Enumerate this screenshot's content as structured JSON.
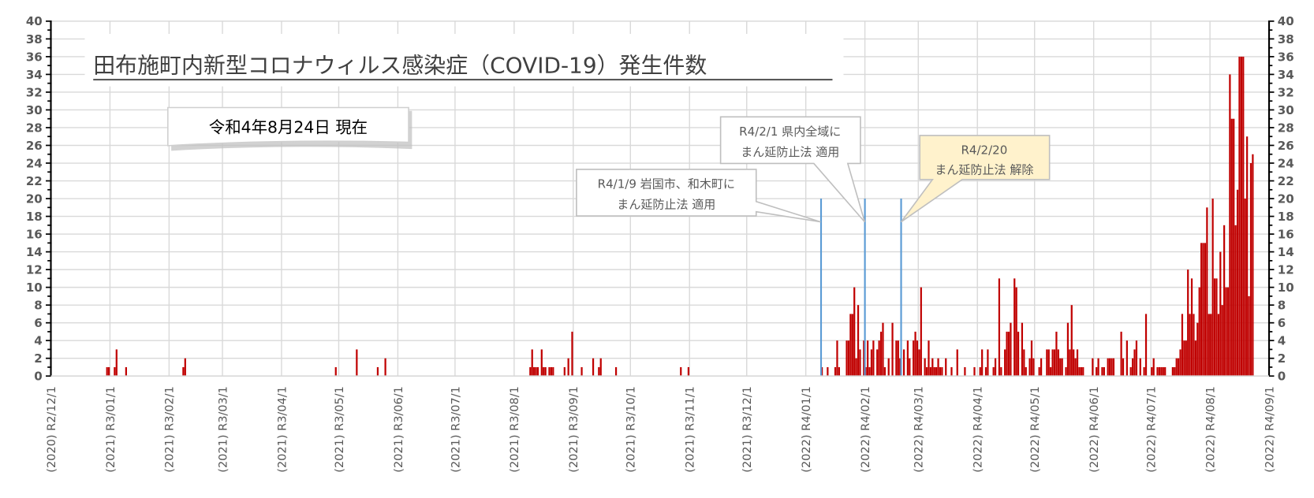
{
  "chart_data": {
    "type": "bar",
    "title": "田布施町内新型コロナウィルス感染症（COVID-19）発生件数",
    "as_of_label": "令和4年8月24日 現在",
    "xlabel": "",
    "ylabel": "",
    "ylim": [
      0,
      40
    ],
    "y_ticks": [
      "0",
      "2",
      "4",
      "6",
      "8",
      "10",
      "12",
      "14",
      "16",
      "18",
      "20",
      "22",
      "24",
      "26",
      "28",
      "30",
      "32",
      "34",
      "36",
      "38",
      "40"
    ],
    "x_range": [
      "2020-12-01",
      "2022-09-01"
    ],
    "grid": true,
    "x_ticks": [
      {
        "date": "2020-12-01",
        "label": "(2020) R2/12/1"
      },
      {
        "date": "2021-01-01",
        "label": "(2021) R3/01/1"
      },
      {
        "date": "2021-02-01",
        "label": "(2021) R3/02/1"
      },
      {
        "date": "2021-03-01",
        "label": "(2021) R3/03/1"
      },
      {
        "date": "2021-04-01",
        "label": "(2021) R3/04/1"
      },
      {
        "date": "2021-05-01",
        "label": "(2021) R3/05/1"
      },
      {
        "date": "2021-06-01",
        "label": "(2021) R3/06/1"
      },
      {
        "date": "2021-07-01",
        "label": "(2021) R3/07/1"
      },
      {
        "date": "2021-08-01",
        "label": "(2021) R3/08/1"
      },
      {
        "date": "2021-09-01",
        "label": "(2021) R3/09/1"
      },
      {
        "date": "2021-10-01",
        "label": "(2021) R3/10/1"
      },
      {
        "date": "2021-11-01",
        "label": "(2021) R3/11/1"
      },
      {
        "date": "2021-12-01",
        "label": "(2021) R3/12/1"
      },
      {
        "date": "2022-01-01",
        "label": "(2022) R4/01/1"
      },
      {
        "date": "2022-02-01",
        "label": "(2022) R4/02/1"
      },
      {
        "date": "2022-03-01",
        "label": "(2022) R4/03/1"
      },
      {
        "date": "2022-04-01",
        "label": "(2022) R4/04/1"
      },
      {
        "date": "2022-05-01",
        "label": "(2022) R4/05/1"
      },
      {
        "date": "2022-06-01",
        "label": "(2022) R4/06/1"
      },
      {
        "date": "2022-07-01",
        "label": "(2022) R4/07/1"
      },
      {
        "date": "2022-08-01",
        "label": "(2022) R4/08/1"
      },
      {
        "date": "2022-09-01",
        "label": "(2022) R4/09/1"
      }
    ],
    "series": [
      {
        "name": "発生件数",
        "color": "#c00000",
        "points": [
          [
            "2020-12-30",
            1
          ],
          [
            "2020-12-31",
            1
          ],
          [
            "2021-01-03",
            1
          ],
          [
            "2021-01-04",
            3
          ],
          [
            "2021-01-09",
            1
          ],
          [
            "2021-02-08",
            1
          ],
          [
            "2021-02-09",
            2
          ],
          [
            "2021-04-29",
            1
          ],
          [
            "2021-05-10",
            3
          ],
          [
            "2021-05-21",
            1
          ],
          [
            "2021-05-25",
            2
          ],
          [
            "2021-08-09",
            1
          ],
          [
            "2021-08-10",
            3
          ],
          [
            "2021-08-11",
            1
          ],
          [
            "2021-08-12",
            1
          ],
          [
            "2021-08-13",
            1
          ],
          [
            "2021-08-15",
            3
          ],
          [
            "2021-08-16",
            1
          ],
          [
            "2021-08-17",
            1
          ],
          [
            "2021-08-19",
            1
          ],
          [
            "2021-08-20",
            1
          ],
          [
            "2021-08-21",
            1
          ],
          [
            "2021-08-27",
            1
          ],
          [
            "2021-08-29",
            2
          ],
          [
            "2021-08-31",
            5
          ],
          [
            "2021-09-05",
            1
          ],
          [
            "2021-09-11",
            2
          ],
          [
            "2021-09-14",
            1
          ],
          [
            "2021-09-15",
            2
          ],
          [
            "2021-09-23",
            1
          ],
          [
            "2021-10-27",
            1
          ],
          [
            "2021-10-31",
            1
          ],
          [
            "2022-01-09",
            1
          ],
          [
            "2022-01-12",
            1
          ],
          [
            "2022-01-16",
            1
          ],
          [
            "2022-01-17",
            4
          ],
          [
            "2022-01-18",
            1
          ],
          [
            "2022-01-22",
            4
          ],
          [
            "2022-01-23",
            4
          ],
          [
            "2022-01-24",
            7
          ],
          [
            "2022-01-25",
            7
          ],
          [
            "2022-01-26",
            10
          ],
          [
            "2022-01-27",
            2
          ],
          [
            "2022-01-28",
            8
          ],
          [
            "2022-01-29",
            3
          ],
          [
            "2022-01-31",
            4
          ],
          [
            "2022-02-01",
            1
          ],
          [
            "2022-02-02",
            4
          ],
          [
            "2022-02-03",
            1
          ],
          [
            "2022-02-04",
            3
          ],
          [
            "2022-02-05",
            4
          ],
          [
            "2022-02-07",
            3
          ],
          [
            "2022-02-08",
            4
          ],
          [
            "2022-02-09",
            5
          ],
          [
            "2022-02-10",
            6
          ],
          [
            "2022-02-11",
            1
          ],
          [
            "2022-02-13",
            2
          ],
          [
            "2022-02-15",
            6
          ],
          [
            "2022-02-17",
            4
          ],
          [
            "2022-02-18",
            4
          ],
          [
            "2022-02-19",
            2
          ],
          [
            "2022-02-21",
            3
          ],
          [
            "2022-02-23",
            4
          ],
          [
            "2022-02-24",
            2
          ],
          [
            "2022-02-26",
            4
          ],
          [
            "2022-02-27",
            5
          ],
          [
            "2022-02-28",
            4
          ],
          [
            "2022-03-01",
            3
          ],
          [
            "2022-03-02",
            10
          ],
          [
            "2022-03-04",
            2
          ],
          [
            "2022-03-05",
            1
          ],
          [
            "2022-03-06",
            4
          ],
          [
            "2022-03-07",
            1
          ],
          [
            "2022-03-08",
            2
          ],
          [
            "2022-03-09",
            1
          ],
          [
            "2022-03-10",
            1
          ],
          [
            "2022-03-11",
            2
          ],
          [
            "2022-03-12",
            1
          ],
          [
            "2022-03-13",
            1
          ],
          [
            "2022-03-15",
            2
          ],
          [
            "2022-03-18",
            1
          ],
          [
            "2022-03-21",
            3
          ],
          [
            "2022-03-25",
            1
          ],
          [
            "2022-03-30",
            1
          ],
          [
            "2022-04-02",
            1
          ],
          [
            "2022-04-03",
            3
          ],
          [
            "2022-04-05",
            1
          ],
          [
            "2022-04-06",
            3
          ],
          [
            "2022-04-09",
            1
          ],
          [
            "2022-04-10",
            2
          ],
          [
            "2022-04-12",
            11
          ],
          [
            "2022-04-13",
            1
          ],
          [
            "2022-04-15",
            3
          ],
          [
            "2022-04-16",
            5
          ],
          [
            "2022-04-17",
            5
          ],
          [
            "2022-04-18",
            6
          ],
          [
            "2022-04-20",
            11
          ],
          [
            "2022-04-21",
            10
          ],
          [
            "2022-04-22",
            5
          ],
          [
            "2022-04-24",
            6
          ],
          [
            "2022-04-25",
            3
          ],
          [
            "2022-04-26",
            1
          ],
          [
            "2022-04-28",
            2
          ],
          [
            "2022-04-29",
            4
          ],
          [
            "2022-04-30",
            2
          ],
          [
            "2022-05-03",
            1
          ],
          [
            "2022-05-04",
            2
          ],
          [
            "2022-05-07",
            3
          ],
          [
            "2022-05-08",
            3
          ],
          [
            "2022-05-09",
            1
          ],
          [
            "2022-05-10",
            3
          ],
          [
            "2022-05-11",
            3
          ],
          [
            "2022-05-12",
            5
          ],
          [
            "2022-05-13",
            3
          ],
          [
            "2022-05-14",
            2
          ],
          [
            "2022-05-15",
            2
          ],
          [
            "2022-05-17",
            1
          ],
          [
            "2022-05-18",
            6
          ],
          [
            "2022-05-19",
            3
          ],
          [
            "2022-05-20",
            8
          ],
          [
            "2022-05-21",
            3
          ],
          [
            "2022-05-22",
            2
          ],
          [
            "2022-05-23",
            3
          ],
          [
            "2022-05-24",
            1
          ],
          [
            "2022-05-25",
            1
          ],
          [
            "2022-05-26",
            1
          ],
          [
            "2022-05-31",
            2
          ],
          [
            "2022-06-02",
            1
          ],
          [
            "2022-06-03",
            2
          ],
          [
            "2022-06-05",
            1
          ],
          [
            "2022-06-06",
            1
          ],
          [
            "2022-06-08",
            2
          ],
          [
            "2022-06-09",
            2
          ],
          [
            "2022-06-10",
            2
          ],
          [
            "2022-06-11",
            2
          ],
          [
            "2022-06-15",
            5
          ],
          [
            "2022-06-16",
            2
          ],
          [
            "2022-06-18",
            4
          ],
          [
            "2022-06-20",
            1
          ],
          [
            "2022-06-21",
            2
          ],
          [
            "2022-06-22",
            3
          ],
          [
            "2022-06-23",
            4
          ],
          [
            "2022-06-25",
            2
          ],
          [
            "2022-06-27",
            1
          ],
          [
            "2022-06-28",
            7
          ],
          [
            "2022-07-01",
            1
          ],
          [
            "2022-07-02",
            2
          ],
          [
            "2022-07-04",
            1
          ],
          [
            "2022-07-05",
            1
          ],
          [
            "2022-07-06",
            1
          ],
          [
            "2022-07-07",
            1
          ],
          [
            "2022-07-08",
            1
          ],
          [
            "2022-07-12",
            1
          ],
          [
            "2022-07-13",
            1
          ],
          [
            "2022-07-14",
            2
          ],
          [
            "2022-07-15",
            2
          ],
          [
            "2022-07-16",
            3
          ],
          [
            "2022-07-17",
            7
          ],
          [
            "2022-07-18",
            4
          ],
          [
            "2022-07-19",
            4
          ],
          [
            "2022-07-20",
            12
          ],
          [
            "2022-07-21",
            7
          ],
          [
            "2022-07-22",
            11
          ],
          [
            "2022-07-23",
            7
          ],
          [
            "2022-07-24",
            4
          ],
          [
            "2022-07-25",
            6
          ],
          [
            "2022-07-26",
            10
          ],
          [
            "2022-07-27",
            15
          ],
          [
            "2022-07-28",
            15
          ],
          [
            "2022-07-29",
            15
          ],
          [
            "2022-07-30",
            19
          ],
          [
            "2022-07-31",
            7
          ],
          [
            "2022-08-01",
            7
          ],
          [
            "2022-08-02",
            20
          ],
          [
            "2022-08-03",
            11
          ],
          [
            "2022-08-04",
            11
          ],
          [
            "2022-08-05",
            7
          ],
          [
            "2022-08-06",
            14
          ],
          [
            "2022-08-07",
            8
          ],
          [
            "2022-08-08",
            17
          ],
          [
            "2022-08-09",
            10
          ],
          [
            "2022-08-10",
            10
          ],
          [
            "2022-08-11",
            34
          ],
          [
            "2022-08-12",
            29
          ],
          [
            "2022-08-13",
            29
          ],
          [
            "2022-08-14",
            17
          ],
          [
            "2022-08-15",
            21
          ],
          [
            "2022-08-16",
            36
          ],
          [
            "2022-08-17",
            36
          ],
          [
            "2022-08-18",
            36
          ],
          [
            "2022-08-19",
            20
          ],
          [
            "2022-08-20",
            27
          ],
          [
            "2022-08-21",
            9
          ],
          [
            "2022-08-22",
            24
          ],
          [
            "2022-08-23",
            25
          ]
        ]
      }
    ],
    "markers": [
      {
        "date": "2022-01-09",
        "value": 20,
        "color": "#5b9bd5",
        "line1": "R4/1/9  岩国市、和木町に",
        "line2": "まん延防止法 適用",
        "fill": "#ffffff"
      },
      {
        "date": "2022-02-01",
        "value": 20,
        "color": "#5b9bd5",
        "line1": "R4/2/1  県内全域に",
        "line2": "まん延防止法 適用",
        "fill": "#ffffff"
      },
      {
        "date": "2022-02-20",
        "value": 20,
        "color": "#5b9bd5",
        "line1": "R4/2/20",
        "line2": "まん延防止法 解除",
        "fill": "#fff2cc"
      }
    ]
  }
}
